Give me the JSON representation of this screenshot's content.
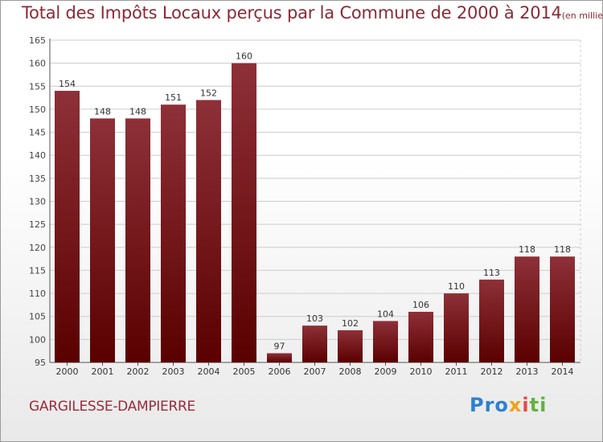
{
  "header": {
    "title": "Total des Impôts Locaux perçus par la Commune de 2000 à 2014",
    "unit": "(en milliers d'€)"
  },
  "footer": {
    "commune": "GARGILESSE-DAMPIERRE",
    "logo": [
      "Pro",
      "x",
      "i",
      "ti"
    ]
  },
  "colors": {
    "title": "#8a2a35",
    "bar_top": "#8e3038",
    "bar_bottom": "#5a0000",
    "grid": "#cccccc"
  },
  "chart_data": {
    "type": "bar",
    "title": "Total des Impôts Locaux perçus par la Commune de 2000 à 2014",
    "xlabel": "",
    "ylabel": "",
    "categories": [
      "2000",
      "2001",
      "2002",
      "2003",
      "2004",
      "2005",
      "2006",
      "2007",
      "2008",
      "2009",
      "2010",
      "2011",
      "2012",
      "2013",
      "2014"
    ],
    "values": [
      154,
      148,
      148,
      151,
      152,
      160,
      97,
      103,
      102,
      104,
      106,
      110,
      113,
      118,
      118
    ],
    "ylim": [
      95,
      165
    ],
    "yticks": [
      95,
      100,
      105,
      110,
      115,
      120,
      125,
      130,
      135,
      140,
      145,
      150,
      155,
      160,
      165
    ],
    "grid": true,
    "data_labels": true
  }
}
